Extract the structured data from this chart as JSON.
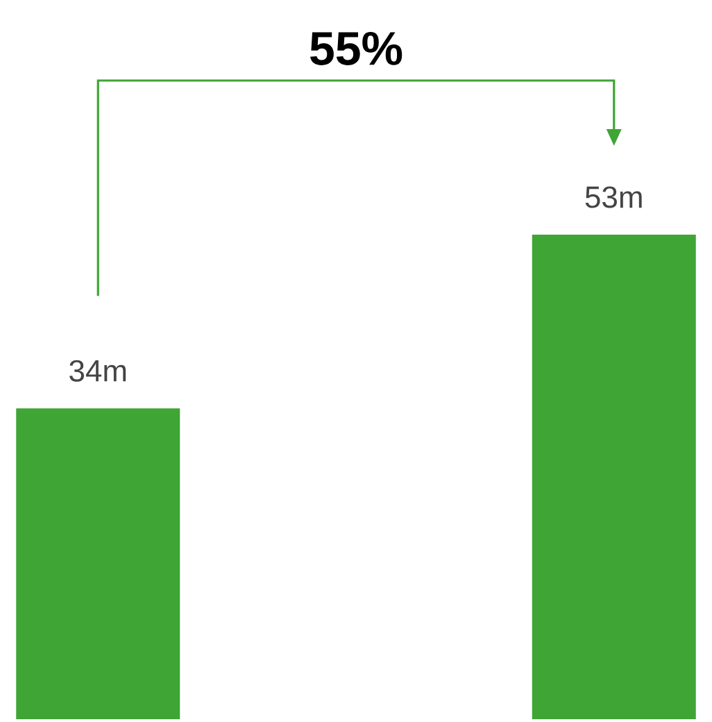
{
  "chart_data": {
    "type": "bar",
    "categories": [
      null,
      null
    ],
    "values": [
      34,
      53
    ],
    "color": "#3fa535",
    "value_labels": [
      "34m",
      "53m"
    ],
    "annotations": [
      "55%"
    ]
  }
}
